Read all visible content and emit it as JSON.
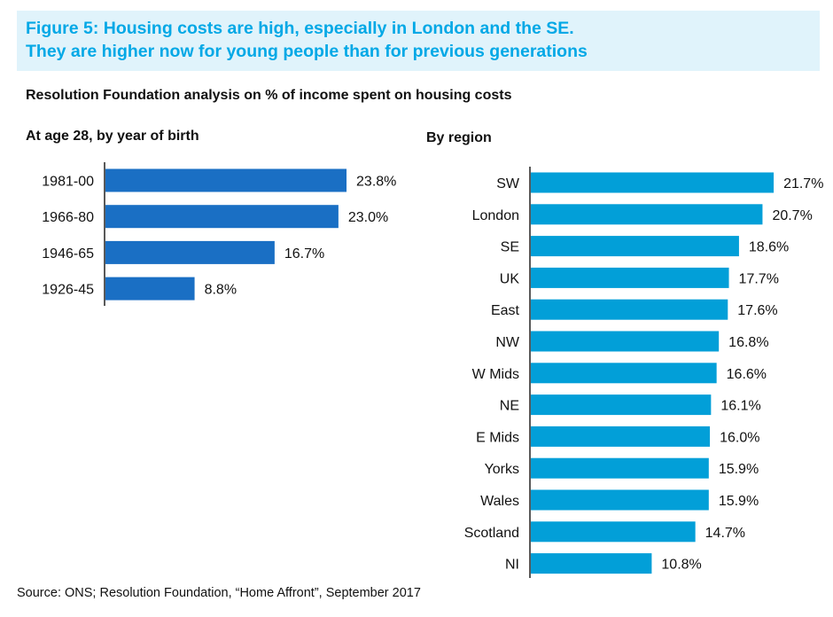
{
  "title": {
    "line1": "Figure 5: Housing costs are high, especially in London and the SE.",
    "line2": "They are higher now for young people than for previous generations"
  },
  "subtitle": "Resolution Foundation analysis on % of income spent on housing costs",
  "source": "Source: ONS; Resolution Foundation, “Home Affront”, September 2017",
  "colors": {
    "title_bg": "#e0f3fb",
    "title_text": "#02a8e6",
    "left_bars": "#1a6fc4",
    "right_bars": "#029fd8"
  },
  "chart_data": [
    {
      "type": "bar",
      "orientation": "horizontal",
      "title": "At age 28, by year of birth",
      "categories": [
        "1981-00",
        "1966-80",
        "1946-65",
        "1926-45"
      ],
      "values": [
        23.8,
        23.0,
        16.7,
        8.8
      ],
      "labels": [
        "23.8%",
        "23.0%",
        "16.7%",
        "8.8%"
      ],
      "unit": "%",
      "grid": false
    },
    {
      "type": "bar",
      "orientation": "horizontal",
      "title": "By region",
      "categories": [
        "SW",
        "London",
        "SE",
        "UK",
        "East",
        "NW",
        "W Mids",
        "NE",
        "E Mids",
        "Yorks",
        "Wales",
        "Scotland",
        "NI"
      ],
      "values": [
        21.7,
        20.7,
        18.6,
        17.7,
        17.6,
        16.8,
        16.6,
        16.1,
        16.0,
        15.9,
        15.9,
        14.7,
        10.8
      ],
      "labels": [
        "21.7%",
        "20.7%",
        "18.6%",
        "17.7%",
        "17.6%",
        "16.8%",
        "16.6%",
        "16.1%",
        "16.0%",
        "15.9%",
        "15.9%",
        "14.7%",
        "10.8%"
      ],
      "unit": "%",
      "grid": false
    }
  ]
}
